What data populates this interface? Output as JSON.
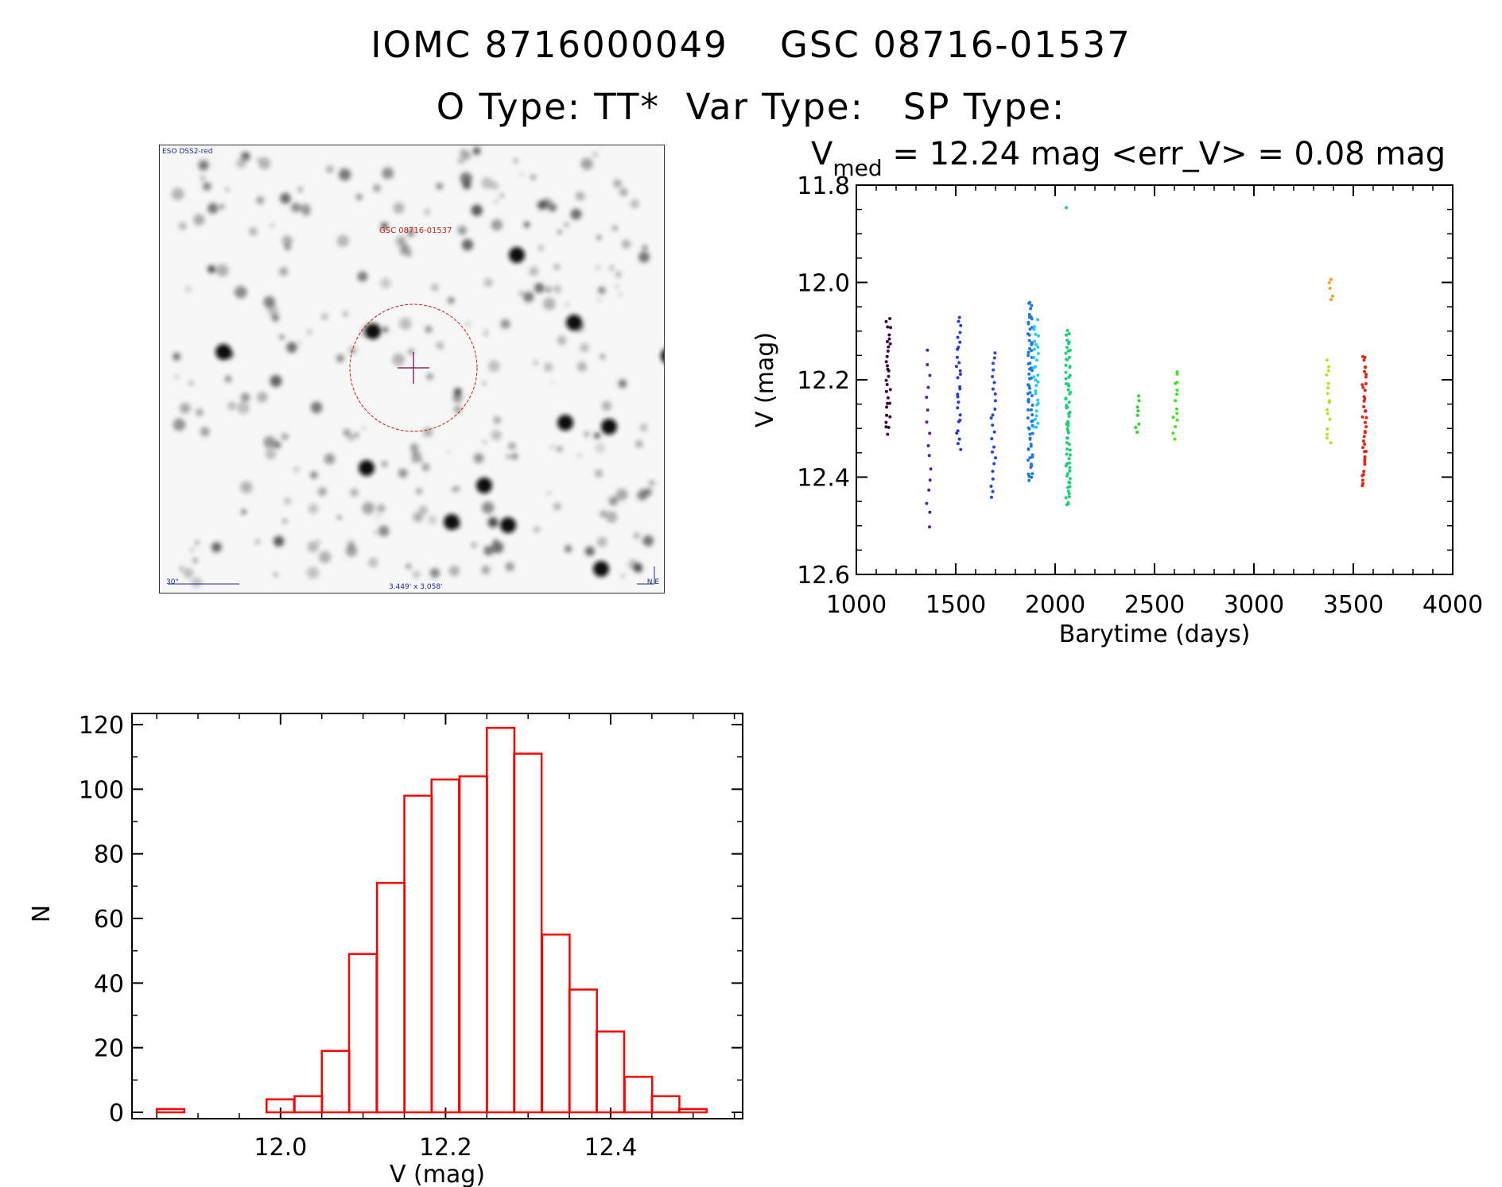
{
  "header": {
    "title": "IOMC 8716000049    GSC 08716-01537",
    "subtitle": "O Type: TT*  Var Type:   SP Type:"
  },
  "finder": {
    "survey_label": "ESO DSS2-red",
    "target_label": "GSC 08716-01537",
    "scale_label": "30\"",
    "fov_label": "3.449' x 3.058'",
    "north_label": "N",
    "east_label": "E"
  },
  "chart_data": [
    {
      "type": "scatter",
      "title_main": "V",
      "title_sub": "med",
      "title_rest": " = 12.24 mag <err_V> = 0.08 mag",
      "xlabel": "Barytime (days)",
      "ylabel": "V (mag)",
      "xlim": [
        1000,
        4000
      ],
      "ylim": [
        12.6,
        11.8
      ],
      "y_inverted": true,
      "xticks": [
        1000,
        1500,
        2000,
        2500,
        3000,
        3500,
        4000
      ],
      "yticks": [
        "11.8",
        "12.0",
        "12.2",
        "12.4",
        "12.6"
      ],
      "groups": [
        {
          "x": 1160,
          "color": "#3a0a3e",
          "ymin": 12.07,
          "ymax": 12.31,
          "n": 30
        },
        {
          "x": 1365,
          "color": "#5a1f9a",
          "ymin": 12.14,
          "ymax": 12.5,
          "n": 16
        },
        {
          "x": 1515,
          "color": "#2a3ad6",
          "ymin": 12.07,
          "ymax": 12.34,
          "n": 28
        },
        {
          "x": 1690,
          "color": "#2249d8",
          "ymin": 12.14,
          "ymax": 12.44,
          "n": 24
        },
        {
          "x": 1875,
          "color": "#1e7ae0",
          "ymin": 12.04,
          "ymax": 12.41,
          "n": 70
        },
        {
          "x": 1905,
          "color": "#1dd0f0",
          "ymin": 12.08,
          "ymax": 12.3,
          "n": 30
        },
        {
          "x": 2065,
          "color": "#19d275",
          "ymin": 12.1,
          "ymax": 12.46,
          "n": 70
        },
        {
          "x": 2060,
          "color": "#20d0a0",
          "ymin": 11.85,
          "ymax": 11.85,
          "n": 1
        },
        {
          "x": 2415,
          "color": "#2ad62a",
          "ymin": 12.23,
          "ymax": 12.31,
          "n": 8
        },
        {
          "x": 2605,
          "color": "#44e21e",
          "ymin": 12.18,
          "ymax": 12.32,
          "n": 14
        },
        {
          "x": 3375,
          "color": "#c8dc1e",
          "ymin": 12.16,
          "ymax": 12.33,
          "n": 16
        },
        {
          "x": 3385,
          "color": "#f5a020",
          "ymin": 11.99,
          "ymax": 12.04,
          "n": 5
        },
        {
          "x": 3555,
          "color": "#e82414",
          "ymin": 12.15,
          "ymax": 12.42,
          "n": 40
        }
      ]
    },
    {
      "type": "bar",
      "xlabel": "V (mag)",
      "ylabel": "N",
      "xlim": [
        11.82,
        12.56
      ],
      "ylim": [
        0,
        125
      ],
      "xticks": [
        "12.0",
        "12.2",
        "12.4"
      ],
      "yticks": [
        "0",
        "20",
        "40",
        "60",
        "80",
        "100",
        "120"
      ],
      "bin_width": 0.0333,
      "bin_starts": [
        11.85,
        11.883,
        11.917,
        11.95,
        11.983,
        12.017,
        12.05,
        12.083,
        12.117,
        12.15,
        12.183,
        12.217,
        12.25,
        12.283,
        12.317,
        12.35,
        12.383,
        12.417,
        12.45,
        12.483
      ],
      "values": [
        1,
        0,
        0,
        0,
        4,
        5,
        19,
        49,
        71,
        98,
        103,
        104,
        119,
        111,
        55,
        38,
        25,
        11,
        5,
        1
      ],
      "color": "#ff0000"
    }
  ]
}
